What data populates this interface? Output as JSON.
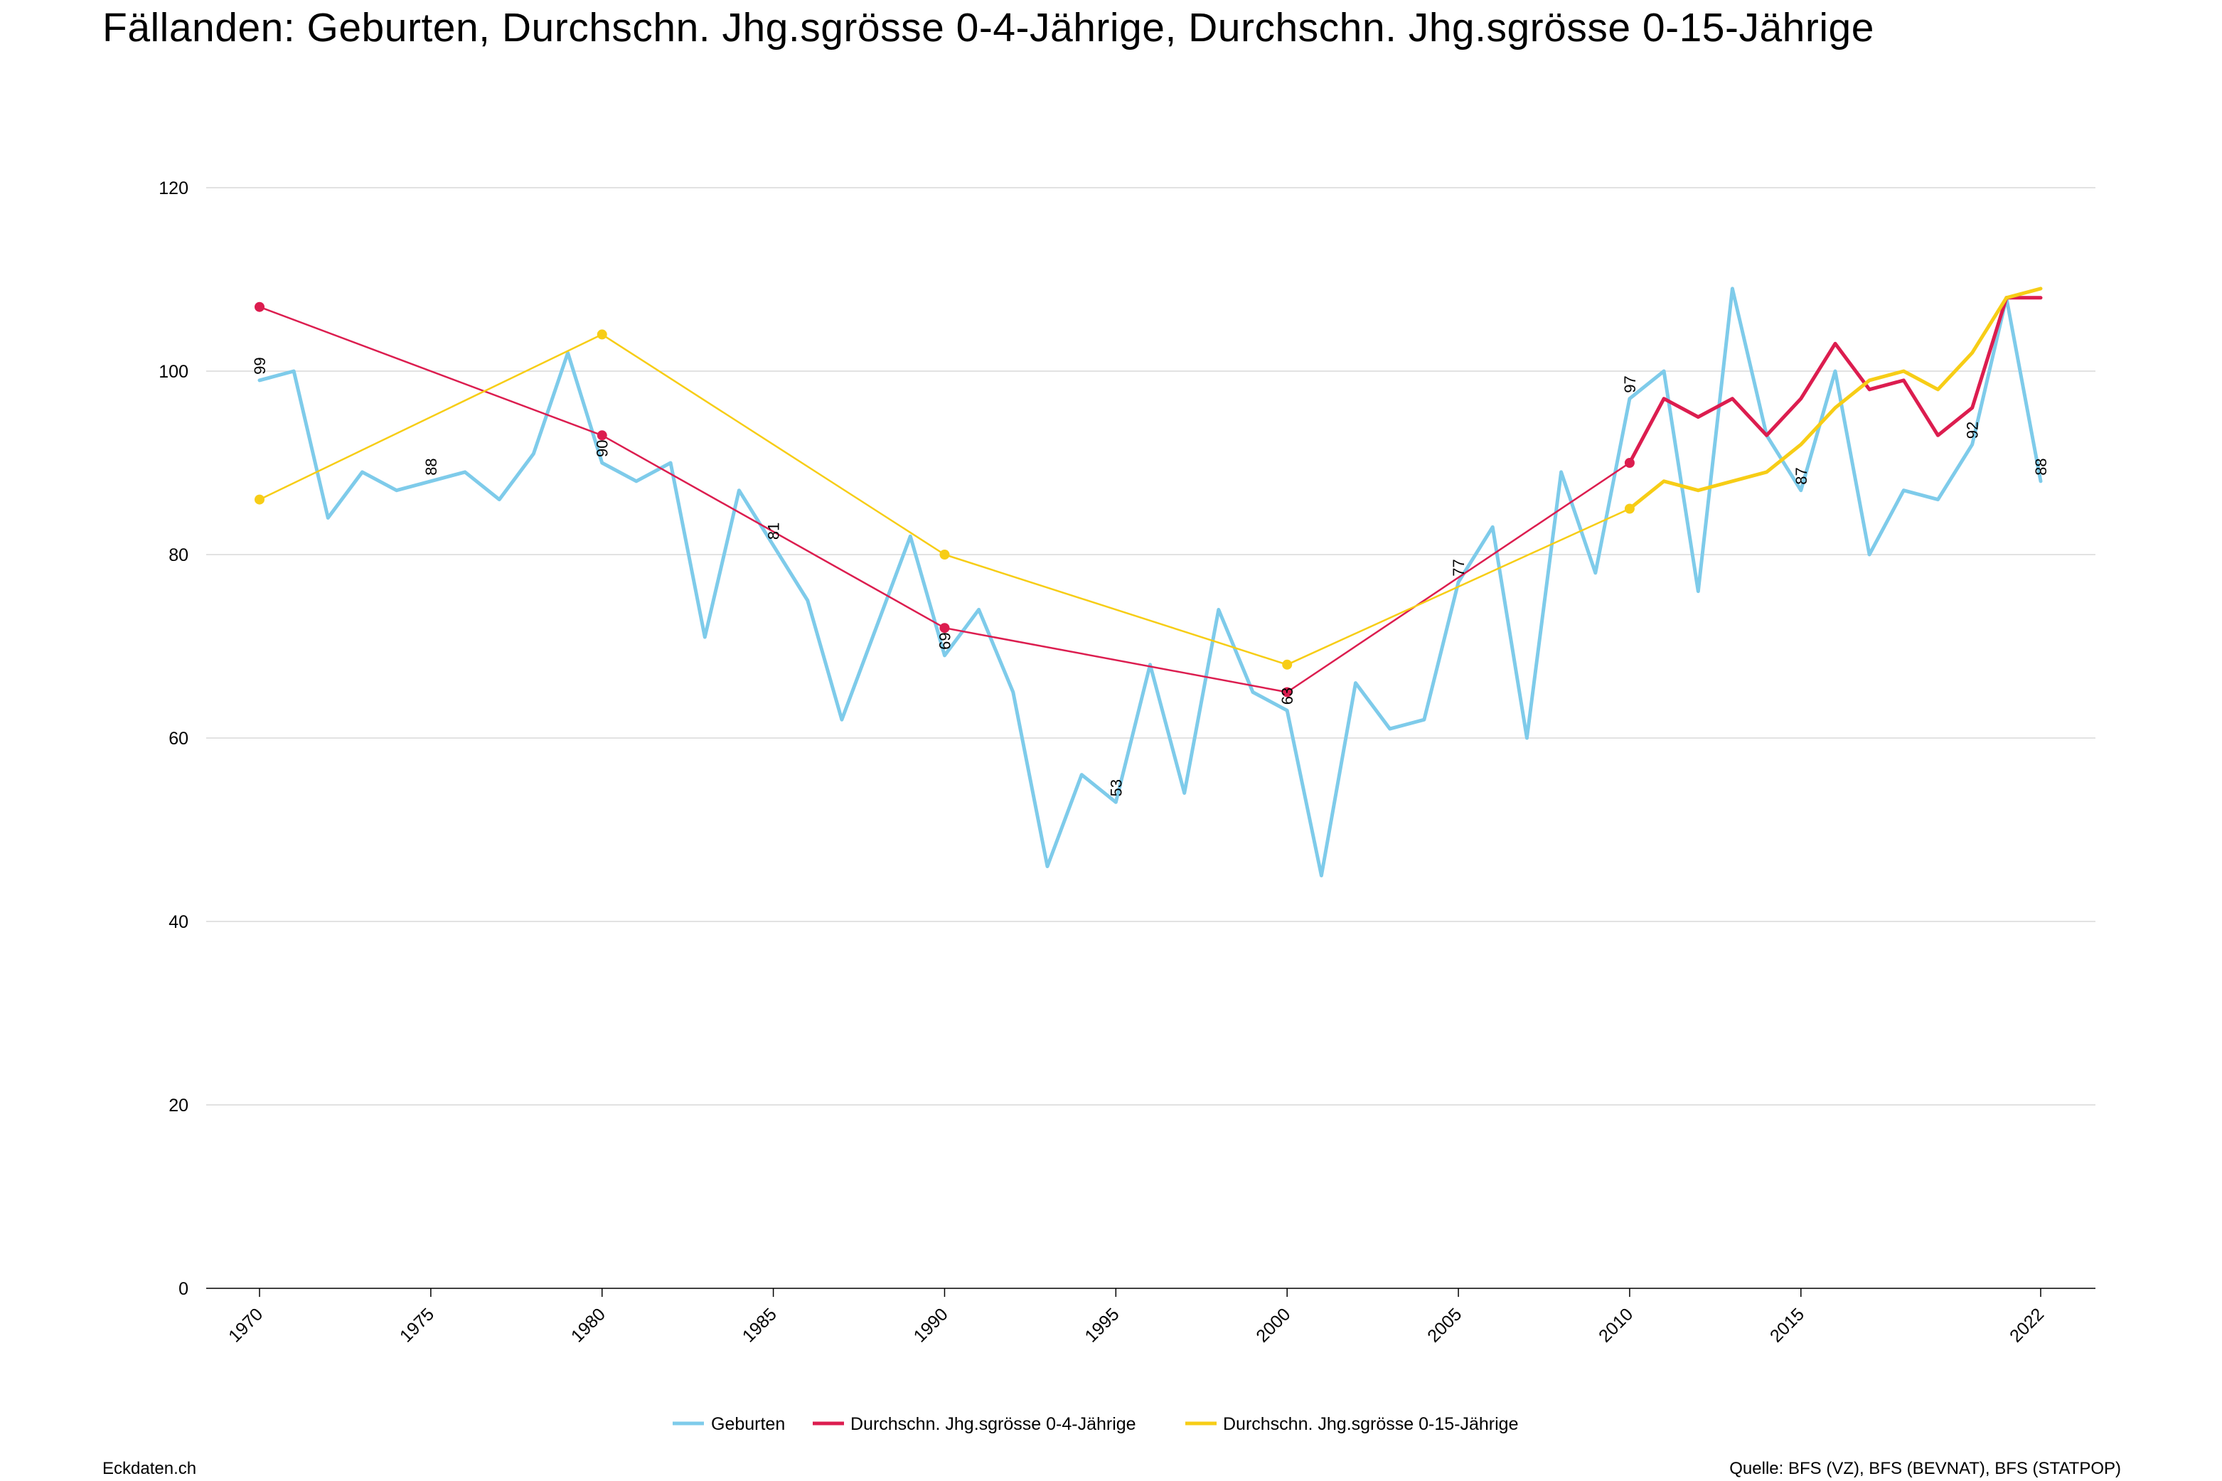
{
  "header": {
    "title": "Fällanden: Geburten, Durchschn. Jhg.sgrösse 0-4-Jährige, Durchschn. Jhg.sgrösse 0-15-Jährige"
  },
  "footer": {
    "left": "Eckdaten.ch",
    "right": "Quelle: BFS (VZ), BFS (BEVNAT), BFS (STATPOP)"
  },
  "chart_data": {
    "type": "line",
    "title": "Fällanden: Geburten, Durchschn. Jhg.sgrösse 0-4-Jährige, Durchschn. Jhg.sgrösse 0-15-Jährige",
    "xlim": [
      1970,
      2022
    ],
    "ylim": [
      0,
      120
    ],
    "x_ticks": [
      "1970",
      "1975",
      "1980",
      "1985",
      "1990",
      "1995",
      "2000",
      "2005",
      "2010",
      "2015",
      "2022"
    ],
    "y_ticks": [
      "0",
      "20",
      "40",
      "60",
      "80",
      "100",
      "120"
    ],
    "grid": true,
    "legend_position": "bottom-center",
    "series": [
      {
        "name": "Geburten",
        "color": "#7ecbea",
        "x": [
          1970,
          1971,
          1972,
          1973,
          1974,
          1975,
          1976,
          1977,
          1978,
          1979,
          1980,
          1981,
          1982,
          1983,
          1984,
          1985,
          1986,
          1987,
          1988,
          1989,
          1990,
          1991,
          1992,
          1993,
          1994,
          1995,
          1996,
          1997,
          1998,
          1999,
          2000,
          2001,
          2002,
          2003,
          2004,
          2005,
          2006,
          2007,
          2008,
          2009,
          2010,
          2011,
          2012,
          2013,
          2014,
          2015,
          2016,
          2017,
          2018,
          2019,
          2020,
          2021,
          2022
        ],
        "y": [
          99,
          100,
          84,
          89,
          87,
          88,
          89,
          86,
          91,
          102,
          90,
          88,
          90,
          71,
          87,
          81,
          75,
          62,
          72,
          82,
          69,
          74,
          65,
          46,
          56,
          53,
          68,
          54,
          74,
          65,
          63,
          45,
          66,
          61,
          62,
          77,
          83,
          60,
          89,
          78,
          97,
          100,
          76,
          109,
          93,
          87,
          100,
          80,
          87,
          86,
          92,
          108,
          88
        ],
        "labels": [
          {
            "x": 1970,
            "y": 99,
            "text": "99"
          },
          {
            "x": 1975,
            "y": 88,
            "text": "88"
          },
          {
            "x": 1980,
            "y": 90,
            "text": "90"
          },
          {
            "x": 1985,
            "y": 81,
            "text": "81"
          },
          {
            "x": 1990,
            "y": 69,
            "text": "69"
          },
          {
            "x": 1995,
            "y": 53,
            "text": "53"
          },
          {
            "x": 2000,
            "y": 63,
            "text": "63"
          },
          {
            "x": 2005,
            "y": 77,
            "text": "77"
          },
          {
            "x": 2010,
            "y": 97,
            "text": "97"
          },
          {
            "x": 2015,
            "y": 87,
            "text": "87"
          },
          {
            "x": 2020,
            "y": 92,
            "text": "92"
          },
          {
            "x": 2022,
            "y": 88,
            "text": "88"
          }
        ]
      },
      {
        "name": "Durchschn. Jhg.sgrösse 0-4-Jährige",
        "color": "#dc1d4f",
        "x": [
          1970,
          1980,
          1990,
          2000,
          2010,
          2011,
          2012,
          2013,
          2014,
          2015,
          2016,
          2017,
          2018,
          2019,
          2020,
          2021,
          2022
        ],
        "y": [
          107,
          93,
          72,
          65,
          90,
          97,
          95,
          97,
          93,
          97,
          103,
          98,
          99,
          93,
          96,
          108,
          108
        ],
        "markers": [
          1970,
          1980,
          1990,
          2000,
          2010
        ]
      },
      {
        "name": "Durchschn. Jhg.sgrösse 0-15-Jährige",
        "color": "#f7cd16",
        "x": [
          1970,
          1980,
          1990,
          2000,
          2010,
          2011,
          2012,
          2013,
          2014,
          2015,
          2016,
          2017,
          2018,
          2019,
          2020,
          2021,
          2022
        ],
        "y": [
          86,
          104,
          80,
          68,
          85,
          88,
          87,
          88,
          89,
          92,
          96,
          99,
          100,
          98,
          102,
          108,
          109
        ],
        "markers": [
          1970,
          1980,
          1990,
          2000,
          2010
        ]
      }
    ]
  }
}
